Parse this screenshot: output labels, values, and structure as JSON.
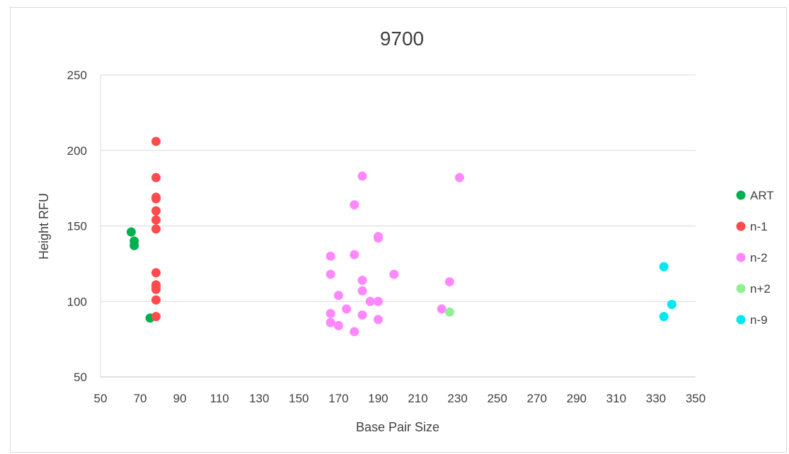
{
  "chart_data": {
    "type": "scatter",
    "title": "9700",
    "xlabel": "Base Pair Size",
    "ylabel": "Height RFU",
    "xlim": [
      50,
      350
    ],
    "ylim": [
      50,
      250
    ],
    "xticks": [
      50,
      70,
      90,
      110,
      130,
      150,
      170,
      190,
      210,
      230,
      250,
      270,
      290,
      310,
      330,
      350
    ],
    "yticks": [
      50,
      100,
      150,
      200,
      250
    ],
    "grid": "horizontal",
    "legend_position": "right",
    "series": [
      {
        "name": "ART",
        "color": "#00b050",
        "points": [
          [
            65.5,
            146
          ],
          [
            67,
            140
          ],
          [
            67,
            137
          ],
          [
            75,
            89
          ]
        ]
      },
      {
        "name": "n-1",
        "color": "#ff4b4b",
        "points": [
          [
            78,
            206
          ],
          [
            78,
            182
          ],
          [
            78,
            169
          ],
          [
            78,
            168
          ],
          [
            78,
            160
          ],
          [
            78,
            154
          ],
          [
            78,
            148
          ],
          [
            78,
            119
          ],
          [
            78,
            111
          ],
          [
            78,
            110
          ],
          [
            78,
            108
          ],
          [
            78,
            101
          ],
          [
            78,
            90
          ]
        ]
      },
      {
        "name": "n-2",
        "color": "#ff88ff",
        "points": [
          [
            182,
            183
          ],
          [
            231,
            182
          ],
          [
            178,
            164
          ],
          [
            190,
            143
          ],
          [
            190,
            142
          ],
          [
            166,
            130
          ],
          [
            178,
            131
          ],
          [
            166,
            118
          ],
          [
            198,
            118
          ],
          [
            182,
            114
          ],
          [
            226,
            113
          ],
          [
            182,
            107
          ],
          [
            170,
            104
          ],
          [
            186,
            100
          ],
          [
            190,
            100
          ],
          [
            174,
            95
          ],
          [
            222,
            95
          ],
          [
            166,
            92
          ],
          [
            182,
            91
          ],
          [
            190,
            88
          ],
          [
            166,
            86
          ],
          [
            170,
            84
          ],
          [
            178,
            80
          ]
        ]
      },
      {
        "name": "n+2",
        "color": "#92f092",
        "points": [
          [
            226,
            93
          ]
        ]
      },
      {
        "name": "n-9",
        "color": "#00e8f0",
        "points": [
          [
            334,
            123
          ],
          [
            338,
            98
          ],
          [
            334,
            90
          ]
        ]
      }
    ]
  }
}
